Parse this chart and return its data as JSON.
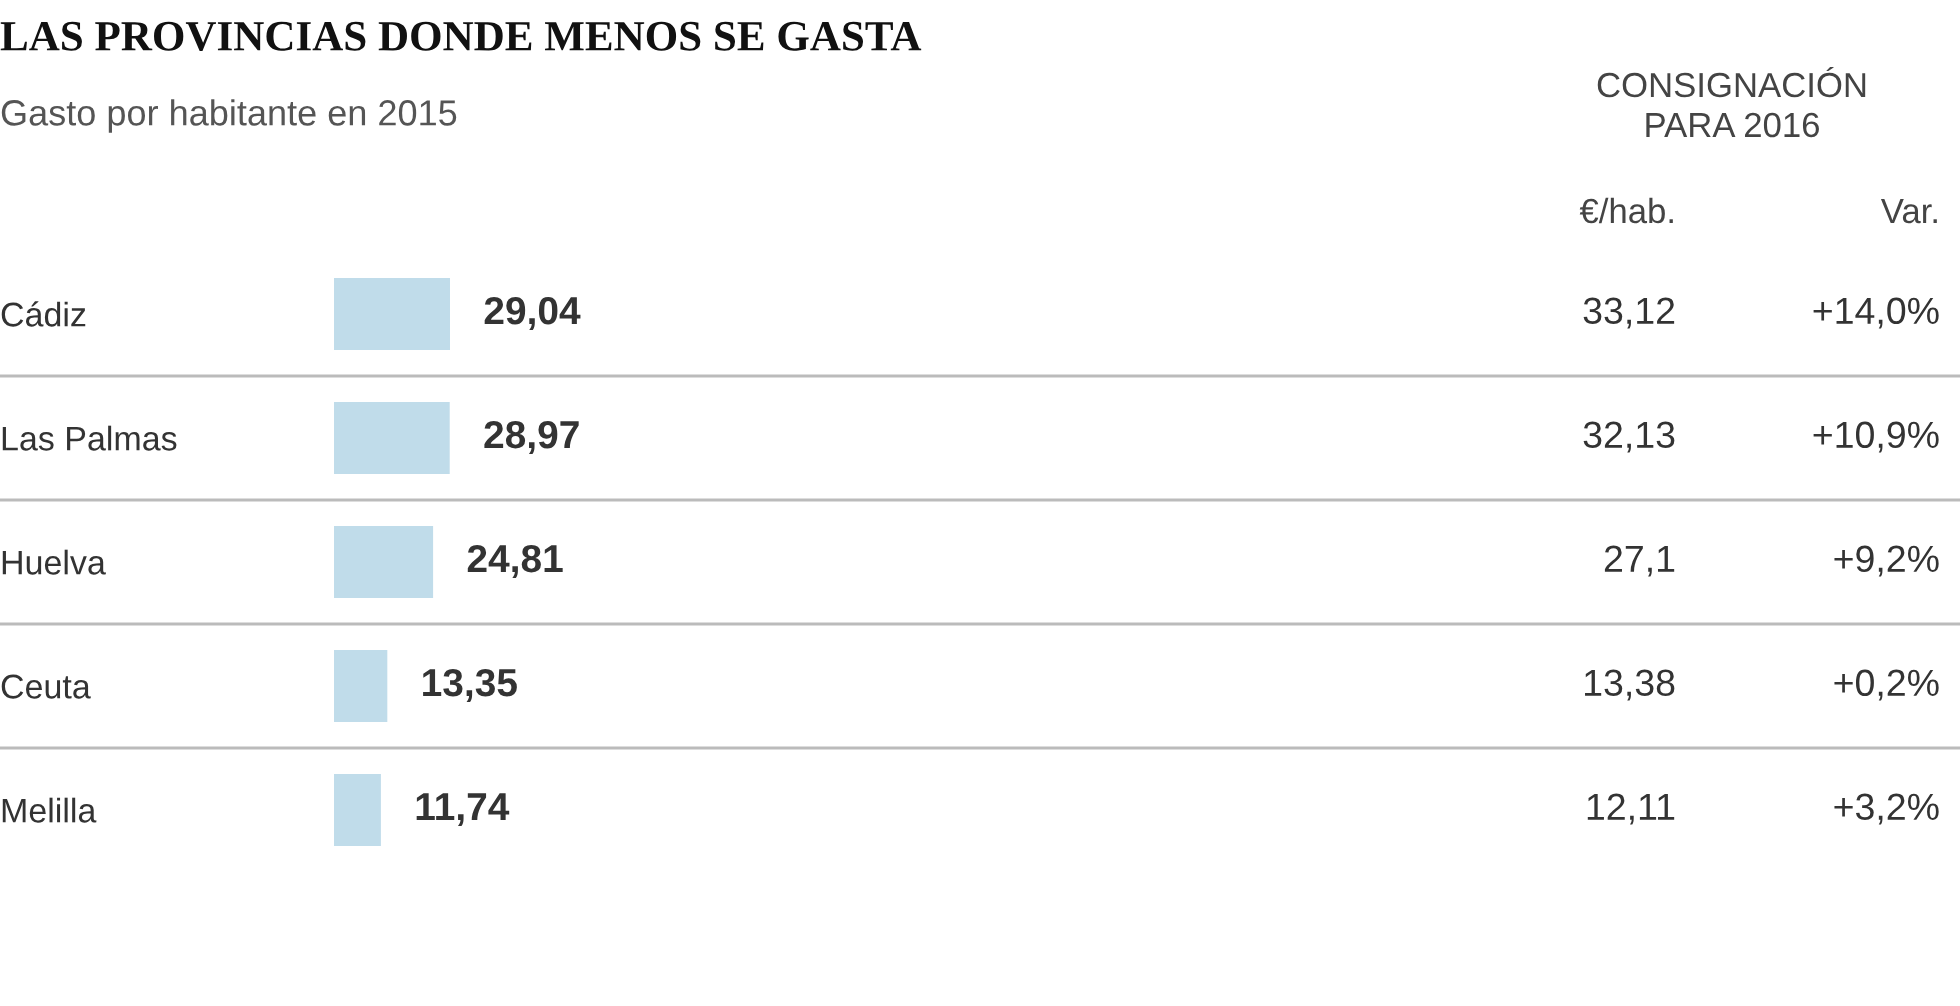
{
  "chart_data": {
    "type": "bar",
    "orientation": "horizontal",
    "title": "LAS PROVINCIAS DONDE MENOS SE GASTA",
    "subtitle": "Gasto por habitante en 2015",
    "categories": [
      "Cádiz",
      "Las Palmas",
      "Huelva",
      "Ceuta",
      "Melilla"
    ],
    "values": [
      29.04,
      28.97,
      24.81,
      13.35,
      11.74
    ],
    "value_labels": [
      "29,04",
      "28,97",
      "24,81",
      "13,35",
      "11,74"
    ],
    "color": "#c0dcea",
    "tick_labels": "y",
    "annotations": [
      "CONSIGNACIÓN\nPARA 2016",
      "€/hab.",
      "Var.",
      "33,12",
      "+14,0%",
      "32,13",
      "+10,9%",
      "27,1",
      "+9,2%",
      "13,38",
      "+0,2%",
      "12,11",
      "+3,2%"
    ]
  }
}
